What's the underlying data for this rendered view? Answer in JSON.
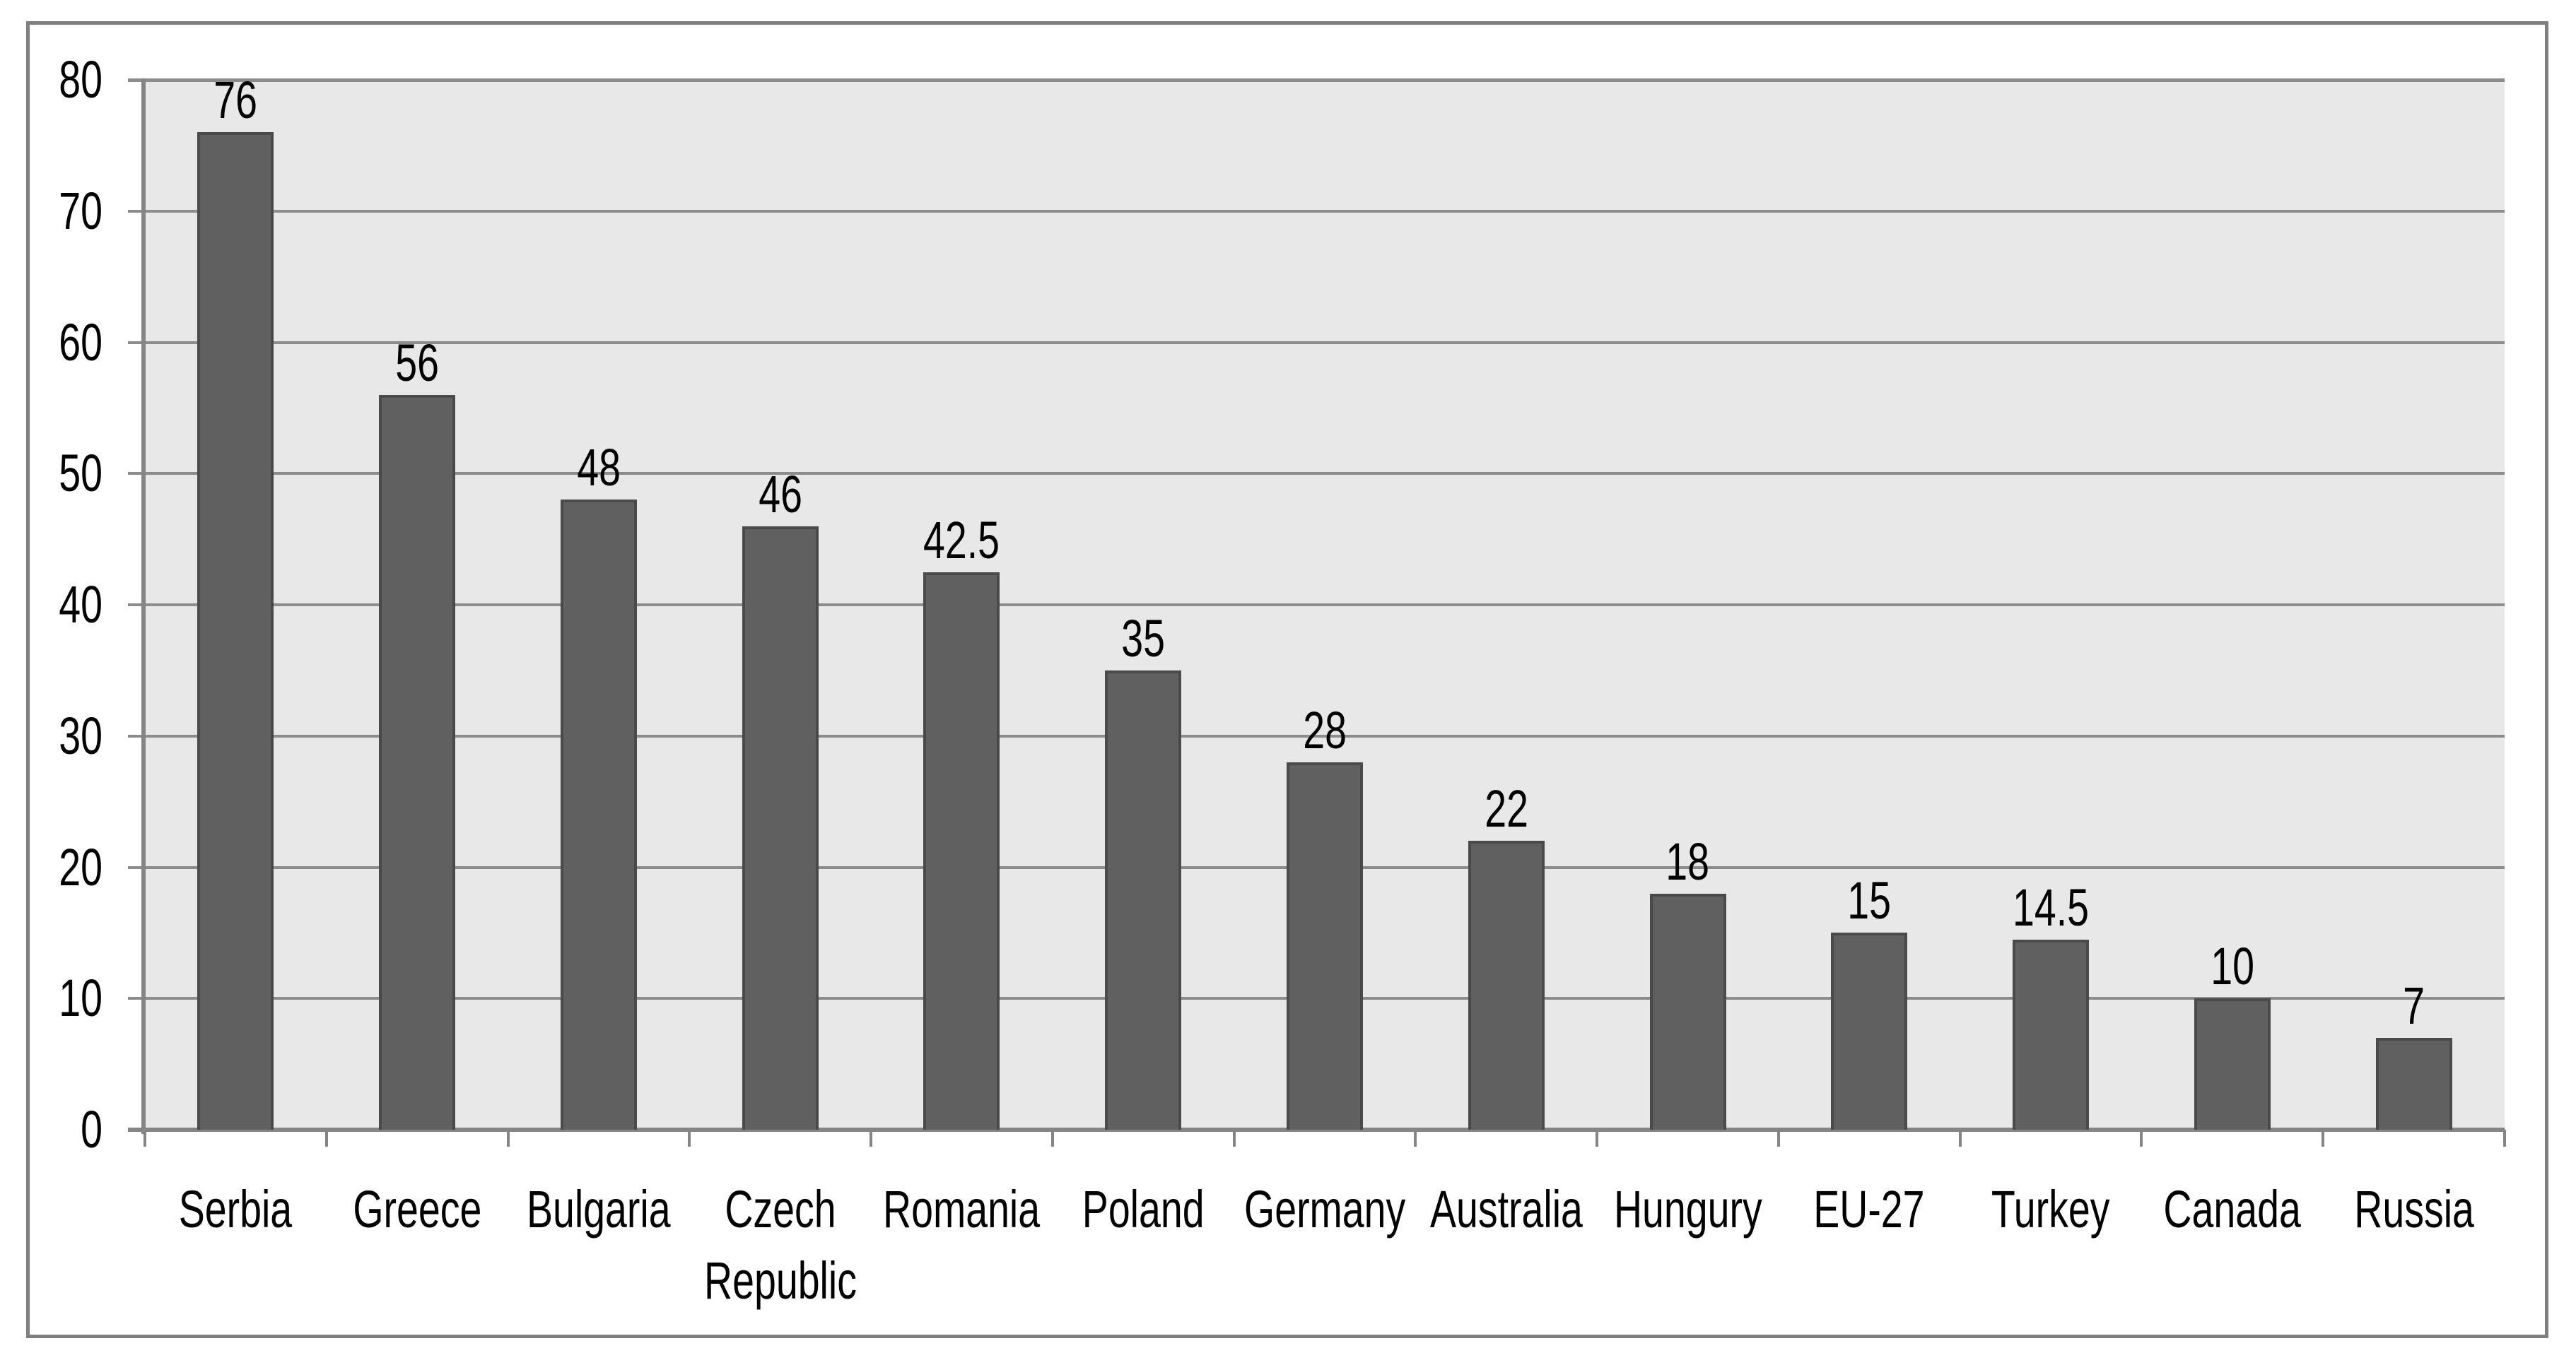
{
  "chart_data": {
    "type": "bar",
    "title": "",
    "xlabel": "",
    "ylabel": "",
    "categories": [
      "Serbia",
      "Greece",
      "Bulgaria",
      "Czech Republic",
      "Romania",
      "Poland",
      "Germany",
      "Australia",
      "Hungury",
      "EU-27",
      "Turkey",
      "Canada",
      "Russia"
    ],
    "values": [
      76,
      56,
      48,
      46,
      42.5,
      35,
      28,
      22,
      18,
      15,
      14.5,
      10,
      7
    ],
    "bar_labels": [
      "76",
      "56",
      "48",
      "46",
      "42.5",
      "35",
      "28",
      "22",
      "18",
      "15",
      "14.5",
      "10",
      "7"
    ],
    "ylim": [
      0,
      80
    ],
    "ytick_interval": 10,
    "yticks": [
      0,
      10,
      20,
      30,
      40,
      50,
      60,
      70,
      80
    ],
    "ytick_labels": [
      "0",
      "10",
      "20",
      "30",
      "40",
      "50",
      "60",
      "70",
      "80"
    ],
    "grid": "horizontal",
    "legend": "none",
    "series_count": 1
  },
  "colors": {
    "bar_fill": "#606060",
    "bar_border": "#4a4a4a",
    "plot_background": "#e8e8e8",
    "gridline": "#8c8c8c",
    "axis": "#858585",
    "outer_border": "#7f7f7f",
    "page_background": "#ffffff",
    "text": "#000000"
  }
}
